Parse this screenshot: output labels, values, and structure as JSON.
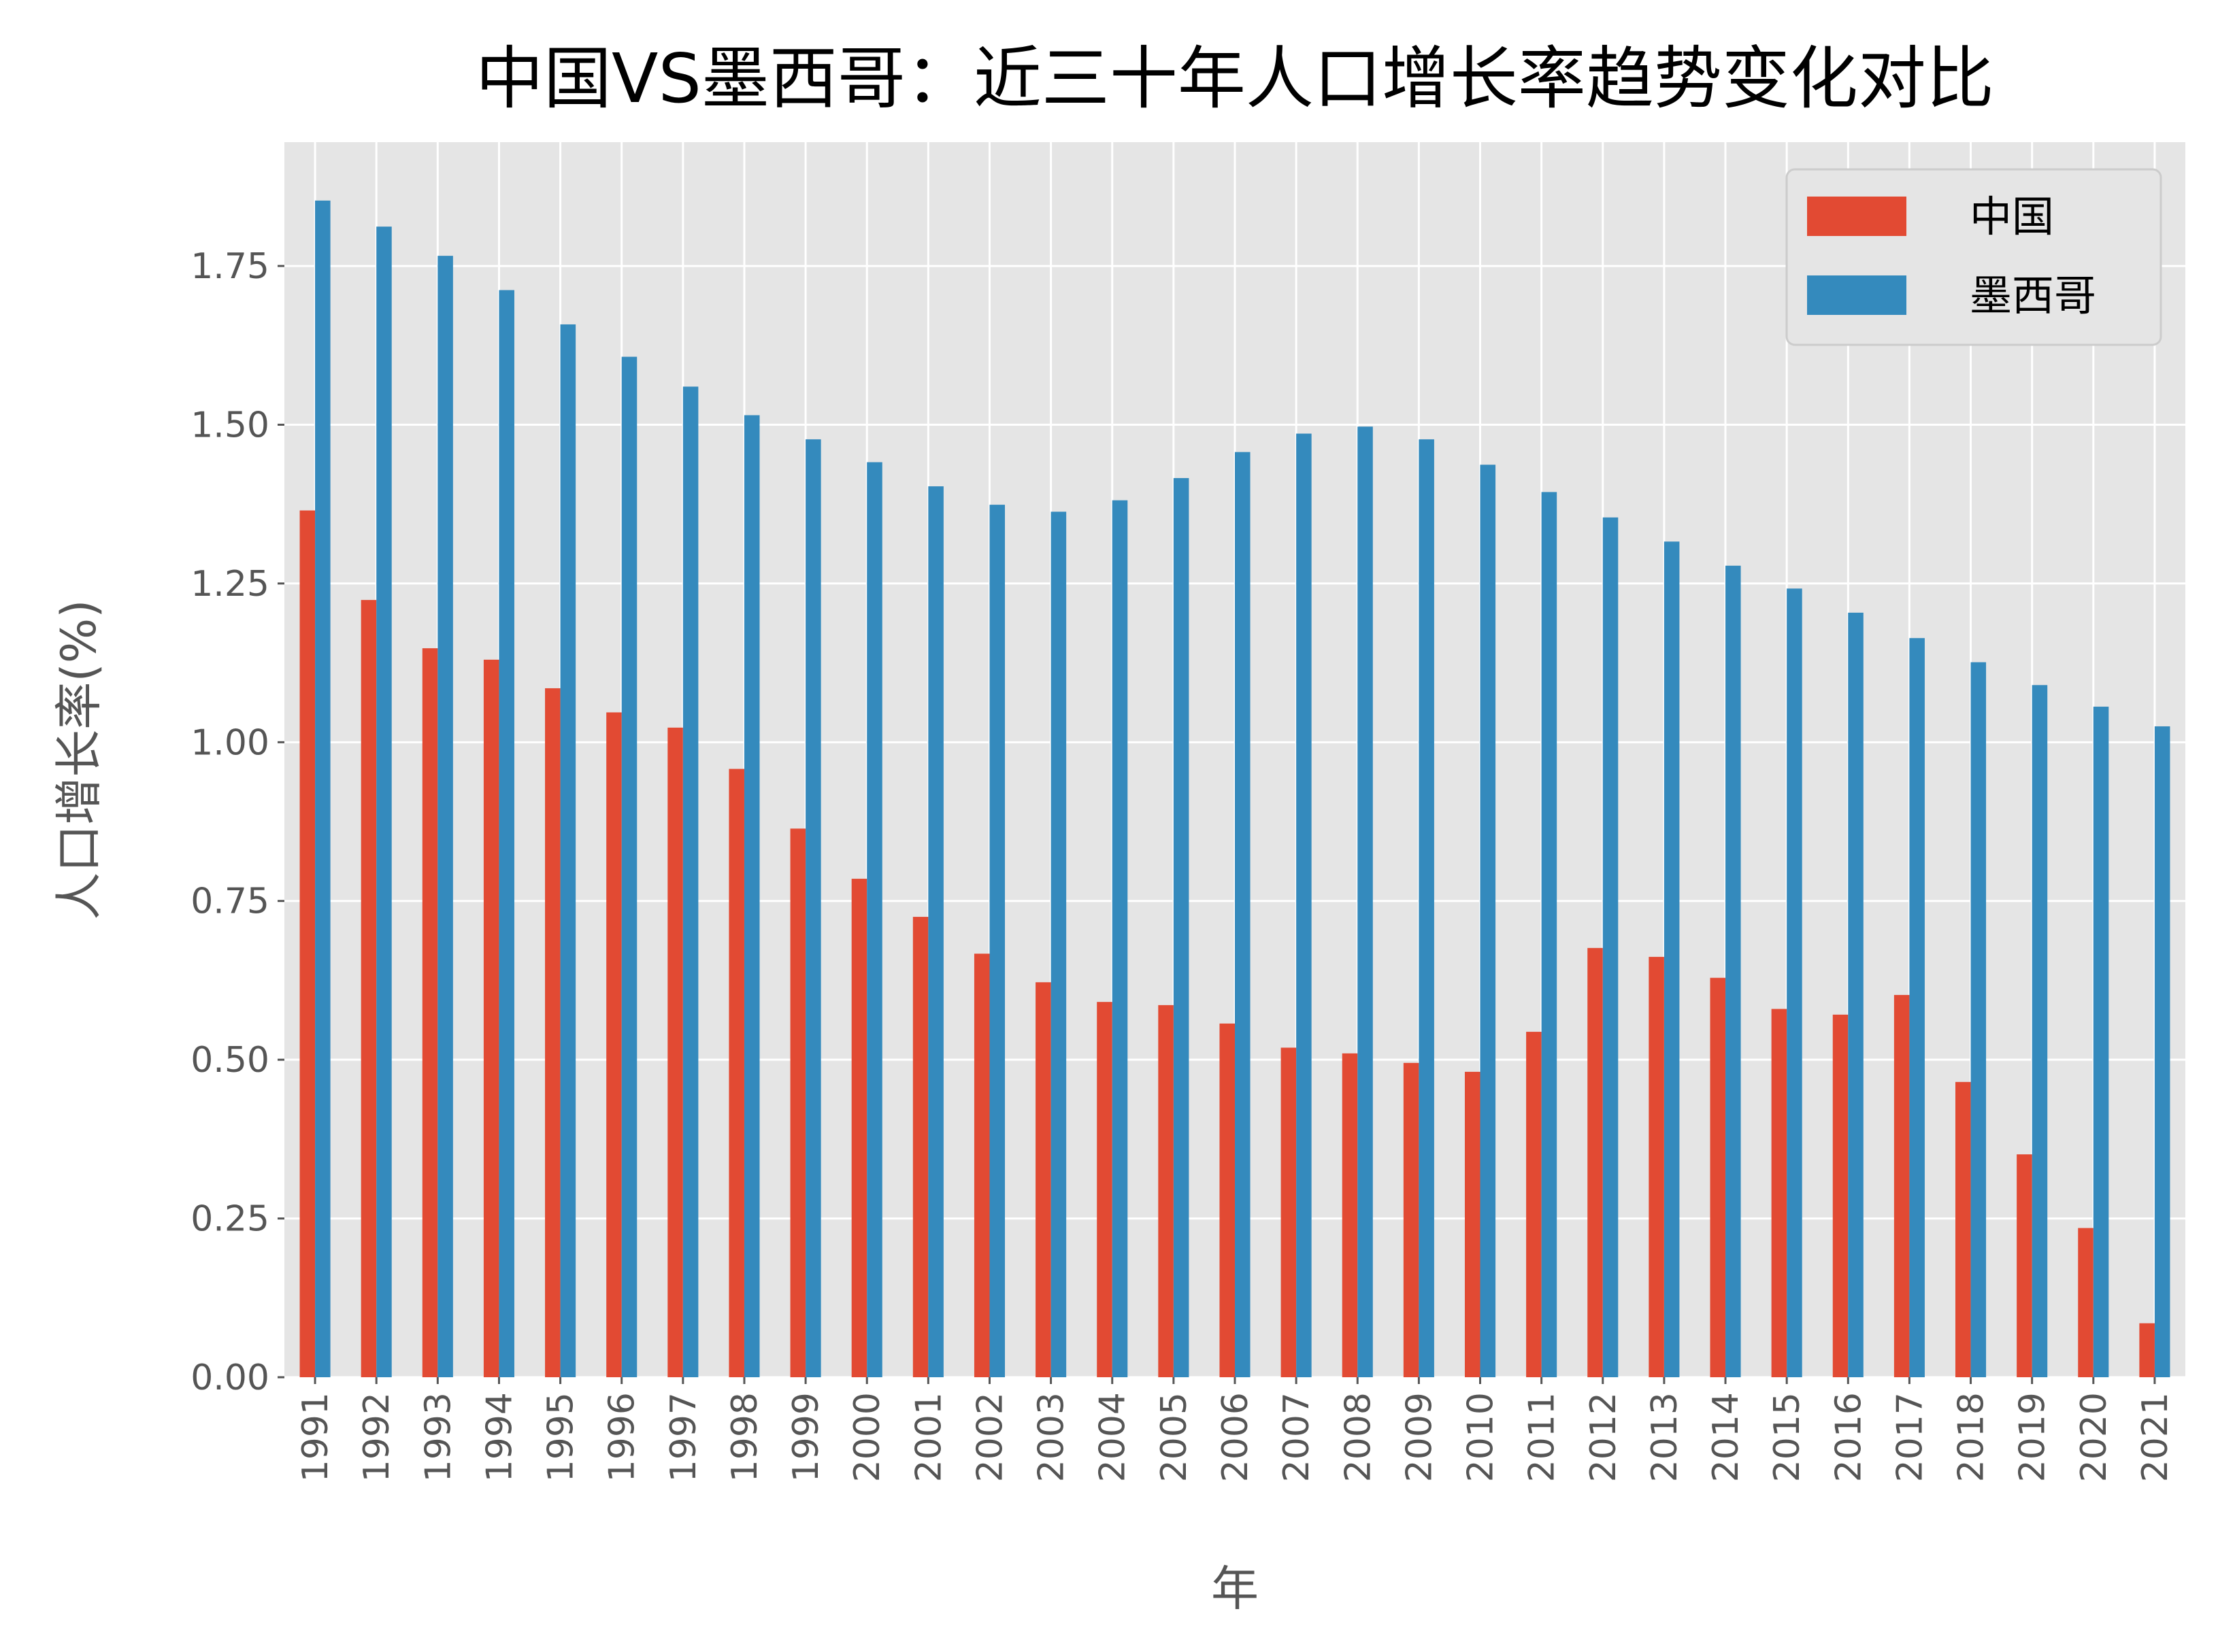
{
  "chart_data": {
    "type": "bar",
    "title": "中国VS墨西哥：近三十年人口增长率趋势变化对比",
    "xlabel": "年",
    "ylabel": "人口增长率(%)",
    "ylim": [
      0,
      1.945
    ],
    "yticks": [
      "0.00",
      "0.25",
      "0.50",
      "0.75",
      "1.00",
      "1.25",
      "1.50",
      "1.75"
    ],
    "grid": true,
    "legend_position": "top-right",
    "categories": [
      "1991",
      "1992",
      "1993",
      "1994",
      "1995",
      "1996",
      "1997",
      "1998",
      "1999",
      "2000",
      "2001",
      "2002",
      "2003",
      "2004",
      "2005",
      "2006",
      "2007",
      "2008",
      "2009",
      "2010",
      "2011",
      "2012",
      "2013",
      "2014",
      "2015",
      "2016",
      "2017",
      "2018",
      "2019",
      "2020",
      "2021"
    ],
    "series": [
      {
        "name": "中国",
        "color": "#E24A33",
        "values": [
          1.365,
          1.224,
          1.148,
          1.13,
          1.085,
          1.047,
          1.023,
          0.958,
          0.864,
          0.785,
          0.725,
          0.667,
          0.622,
          0.591,
          0.586,
          0.557,
          0.519,
          0.51,
          0.495,
          0.481,
          0.544,
          0.676,
          0.662,
          0.629,
          0.58,
          0.571,
          0.602,
          0.465,
          0.351,
          0.235,
          0.085
        ]
      },
      {
        "name": "墨西哥",
        "color": "#348ABD",
        "values": [
          1.853,
          1.812,
          1.766,
          1.712,
          1.658,
          1.607,
          1.56,
          1.515,
          1.477,
          1.441,
          1.403,
          1.374,
          1.363,
          1.381,
          1.416,
          1.457,
          1.486,
          1.497,
          1.477,
          1.437,
          1.394,
          1.354,
          1.316,
          1.278,
          1.242,
          1.204,
          1.164,
          1.126,
          1.09,
          1.056,
          1.025
        ]
      }
    ]
  }
}
